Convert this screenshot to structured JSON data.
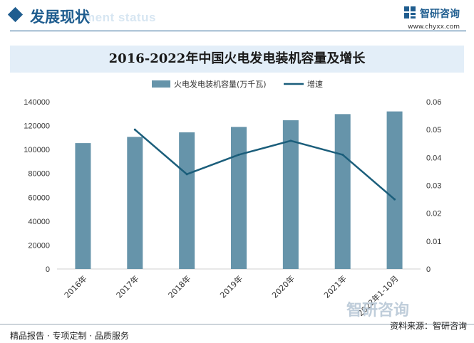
{
  "header": {
    "section_title": "发展现状",
    "ghost_text": "ment status",
    "brand_name": "智研咨询",
    "brand_url": "www.chyxx.com"
  },
  "chart_title": "2016-2022年中国火电发电装机容量及增长",
  "chart_data": {
    "type": "bar",
    "title": "2016-2022年中国火电发电装机容量及增长",
    "categories": [
      "2016年",
      "2017年",
      "2018年",
      "2019年",
      "2020年",
      "2021年",
      "2022年1-10月"
    ],
    "series": [
      {
        "name": "火电发电装机容量(万千瓦)",
        "type": "bar",
        "axis": "left",
        "values": [
          105388,
          110604,
          114408,
          118957,
          124517,
          129678,
          131904
        ],
        "color": "#6694aa"
      },
      {
        "name": "增速",
        "type": "line",
        "axis": "right",
        "values": [
          null,
          0.05,
          0.034,
          0.041,
          0.046,
          0.041,
          0.025
        ],
        "color": "#1b5e7b"
      }
    ],
    "left_axis": {
      "min": 0,
      "max": 140000,
      "ticks": [
        "0",
        "20000",
        "40000",
        "60000",
        "80000",
        "100000",
        "120000",
        "140000"
      ]
    },
    "right_axis": {
      "min": 0,
      "max": 0.06,
      "ticks": [
        "0",
        "0.01",
        "0.02",
        "0.03",
        "0.04",
        "0.05",
        "0.06"
      ]
    },
    "legend_position": "top-center",
    "grid": false
  },
  "footer": {
    "left": "精品报告 · 专项定制 · 品质服务",
    "right": "资料来源：智研咨询"
  },
  "watermark": "智研咨询"
}
